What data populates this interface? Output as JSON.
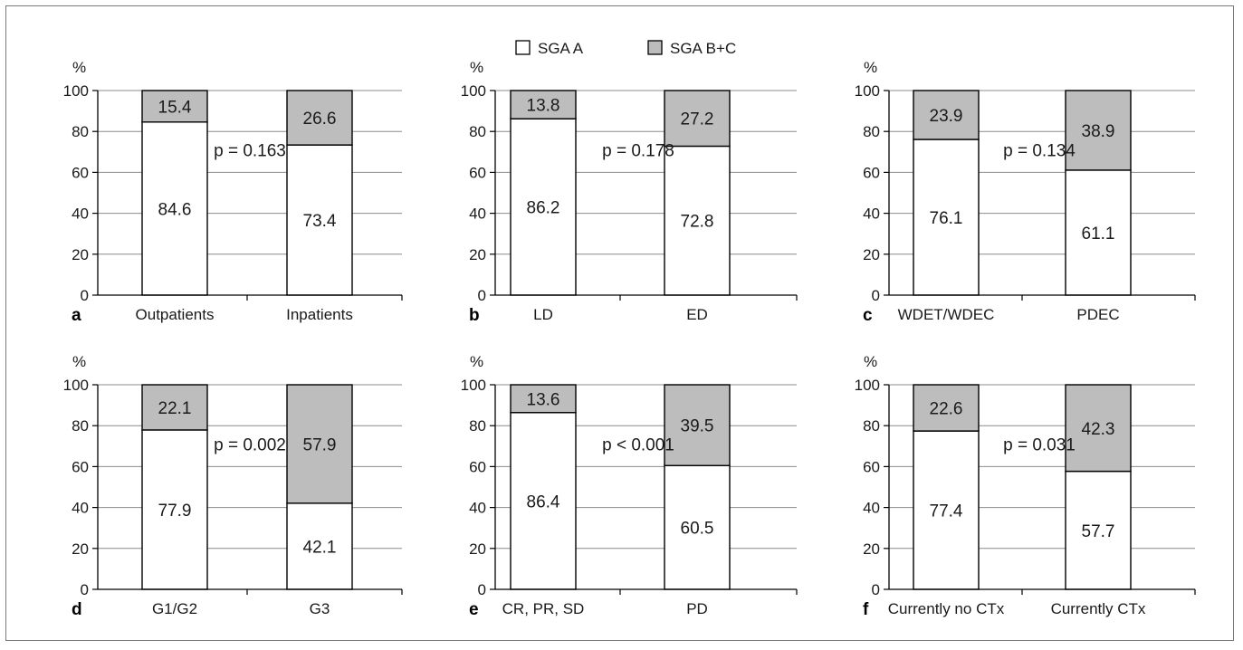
{
  "legend": [
    {
      "label": "SGA A",
      "color": "#ffffff"
    },
    {
      "label": "SGA B+C",
      "color": "#bdbdbd"
    }
  ],
  "chart_data": [
    {
      "type": "bar",
      "panel": "a",
      "stacked": true,
      "y_unit": "%",
      "ylim": [
        0,
        100
      ],
      "yticks": [
        0,
        20,
        40,
        60,
        80,
        100
      ],
      "categories": [
        "Outpatients",
        "Inpatients"
      ],
      "series": [
        {
          "name": "SGA A",
          "values": [
            84.6,
            73.4
          ]
        },
        {
          "name": "SGA B+C",
          "values": [
            15.4,
            26.6
          ]
        }
      ],
      "annotation": "p = 0.163"
    },
    {
      "type": "bar",
      "panel": "b",
      "stacked": true,
      "y_unit": "%",
      "ylim": [
        0,
        100
      ],
      "yticks": [
        0,
        20,
        40,
        60,
        80,
        100
      ],
      "categories": [
        "LD",
        "ED"
      ],
      "series": [
        {
          "name": "SGA A",
          "values": [
            86.2,
            72.8
          ]
        },
        {
          "name": "SGA B+C",
          "values": [
            13.8,
            27.2
          ]
        }
      ],
      "annotation": "p = 0.178"
    },
    {
      "type": "bar",
      "panel": "c",
      "stacked": true,
      "y_unit": "%",
      "ylim": [
        0,
        100
      ],
      "yticks": [
        0,
        20,
        40,
        60,
        80,
        100
      ],
      "categories": [
        "WDET/WDEC",
        "PDEC"
      ],
      "series": [
        {
          "name": "SGA A",
          "values": [
            76.1,
            61.1
          ]
        },
        {
          "name": "SGA B+C",
          "values": [
            23.9,
            38.9
          ]
        }
      ],
      "annotation": "p = 0.134"
    },
    {
      "type": "bar",
      "panel": "d",
      "stacked": true,
      "y_unit": "%",
      "ylim": [
        0,
        100
      ],
      "yticks": [
        0,
        20,
        40,
        60,
        80,
        100
      ],
      "categories": [
        "G1/G2",
        "G3"
      ],
      "series": [
        {
          "name": "SGA A",
          "values": [
            77.9,
            42.1
          ]
        },
        {
          "name": "SGA B+C",
          "values": [
            22.1,
            57.9
          ]
        }
      ],
      "annotation": "p = 0.002"
    },
    {
      "type": "bar",
      "panel": "e",
      "stacked": true,
      "y_unit": "%",
      "ylim": [
        0,
        100
      ],
      "yticks": [
        0,
        20,
        40,
        60,
        80,
        100
      ],
      "categories": [
        "CR, PR, SD",
        "PD"
      ],
      "series": [
        {
          "name": "SGA A",
          "values": [
            86.4,
            60.5
          ]
        },
        {
          "name": "SGA B+C",
          "values": [
            13.6,
            39.5
          ]
        }
      ],
      "annotation": "p < 0.001"
    },
    {
      "type": "bar",
      "panel": "f",
      "stacked": true,
      "y_unit": "%",
      "ylim": [
        0,
        100
      ],
      "yticks": [
        0,
        20,
        40,
        60,
        80,
        100
      ],
      "categories": [
        "Currently no CTx",
        "Currently CTx"
      ],
      "series": [
        {
          "name": "SGA A",
          "values": [
            77.4,
            57.7
          ]
        },
        {
          "name": "SGA B+C",
          "values": [
            22.6,
            42.3
          ]
        }
      ],
      "annotation": "p = 0.031"
    }
  ]
}
